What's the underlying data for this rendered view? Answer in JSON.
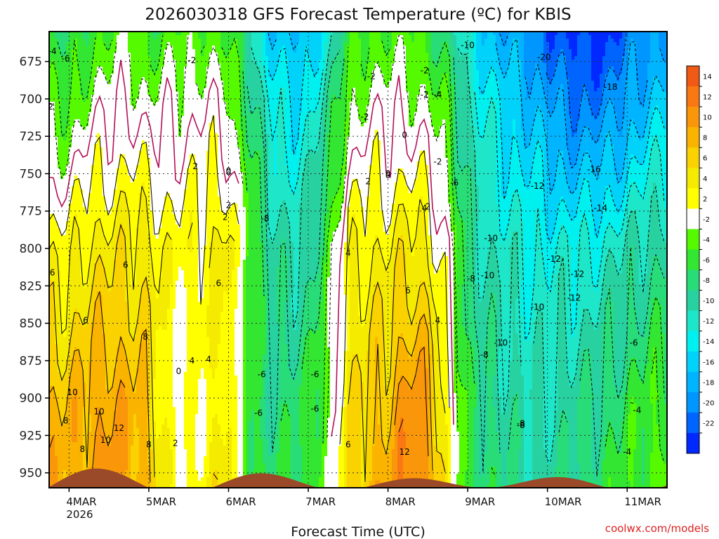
{
  "chart_data": {
    "type": "heatmap",
    "title": "2026030318 GFS Forecast Temperature (ºC) for KBIS",
    "xlabel": "Forecast Time (UTC)",
    "ylabel": "",
    "credit": "coolwx.com/models",
    "x_ticks": [
      {
        "day": "4MAR",
        "year": "2026"
      },
      {
        "day": "5MAR",
        "year": ""
      },
      {
        "day": "6MAR",
        "year": ""
      },
      {
        "day": "7MAR",
        "year": ""
      },
      {
        "day": "8MAR",
        "year": ""
      },
      {
        "day": "9MAR",
        "year": ""
      },
      {
        "day": "10MAR",
        "year": ""
      },
      {
        "day": "11MAR",
        "year": ""
      }
    ],
    "xlim_hours": [
      -6,
      180
    ],
    "y_ticks": [
      "675",
      "700",
      "725",
      "750",
      "775",
      "800",
      "825",
      "850",
      "875",
      "900",
      "925",
      "950"
    ],
    "y_tick_values": [
      675,
      700,
      725,
      750,
      775,
      800,
      825,
      850,
      875,
      900,
      925,
      950
    ],
    "ylim_hpa": [
      655,
      960
    ],
    "y_scale": "pressure (inverted)",
    "grid": true,
    "colorbar": {
      "labels": [
        "14",
        "12",
        "10",
        "8",
        "6",
        "4",
        "2",
        "-2",
        "-4",
        "-6",
        "-8",
        "-10",
        "-12",
        "-14",
        "-16",
        "-18",
        "-20",
        "-22"
      ],
      "colors": [
        "#f05a14",
        "#fa7814",
        "#fa960a",
        "#fab400",
        "#fad200",
        "#f5eb00",
        "#ffff00",
        "#ffffff",
        "#56fa00",
        "#32e632",
        "#28dc78",
        "#28d2a0",
        "#1ee6c8",
        "#00f0f0",
        "#00d2fa",
        "#00b4ff",
        "#0096ff",
        "#0064ff",
        "#0028ff"
      ]
    },
    "series": [
      {
        "hours": [
          0,
          6,
          12,
          18,
          24,
          30,
          36,
          42,
          48,
          54,
          60,
          66,
          72,
          78,
          84,
          90,
          96,
          102,
          108,
          114,
          120,
          126,
          132,
          138,
          144,
          150,
          156,
          162,
          168,
          174,
          180
        ],
        "temp_700": [
          -4,
          -2,
          -1,
          0,
          -2,
          -1,
          -1,
          0,
          -2,
          -6,
          -12,
          -14,
          -13,
          -9,
          -3,
          -1,
          -1,
          -1,
          -2,
          -5,
          -10,
          -13,
          -15,
          -16,
          -18,
          -20,
          -20,
          -20,
          -18,
          -16,
          -15
        ],
        "temp_800": [
          3,
          5,
          5,
          5,
          5,
          3,
          3,
          4,
          5,
          -3,
          -8,
          -10,
          -9,
          -4,
          3,
          4,
          4,
          5,
          4,
          0,
          -8,
          -10,
          -11,
          -12,
          -12,
          -12,
          -12,
          -11,
          -10,
          -9,
          -8
        ],
        "temp_900": [
          8,
          9,
          10,
          9,
          7,
          2,
          1,
          3,
          4,
          -5,
          -8,
          -7,
          -6,
          -3,
          5,
          7,
          8,
          11,
          10,
          2,
          -6,
          -8,
          -9,
          -10,
          -10,
          -9,
          -8,
          -7,
          -6,
          -5,
          -4
        ]
      }
    ],
    "contour_labels": [
      "-4",
      "-4",
      "-2",
      "-2",
      "-2",
      "0",
      "0",
      "2",
      "2",
      "4",
      "4",
      "6",
      "6",
      "8",
      "10",
      "8",
      "6",
      "4",
      "2",
      "0",
      "0",
      "-6",
      "-12",
      "-6",
      "-8",
      "-6",
      "-2",
      "-2",
      "0",
      "2",
      "4",
      "6",
      "8",
      "10",
      "12",
      "4",
      "6",
      "0",
      "2",
      "-4",
      "-6",
      "-8",
      "-10",
      "-10",
      "-12",
      "-16",
      "-18",
      "-14",
      "-12",
      "-10",
      "-8",
      "-6",
      "-2",
      "-6",
      "-4",
      "-8",
      "-10",
      "-12",
      "-10",
      "-8",
      "-6",
      "-20",
      "2",
      "-2",
      "6",
      "10",
      "8",
      "12"
    ]
  }
}
